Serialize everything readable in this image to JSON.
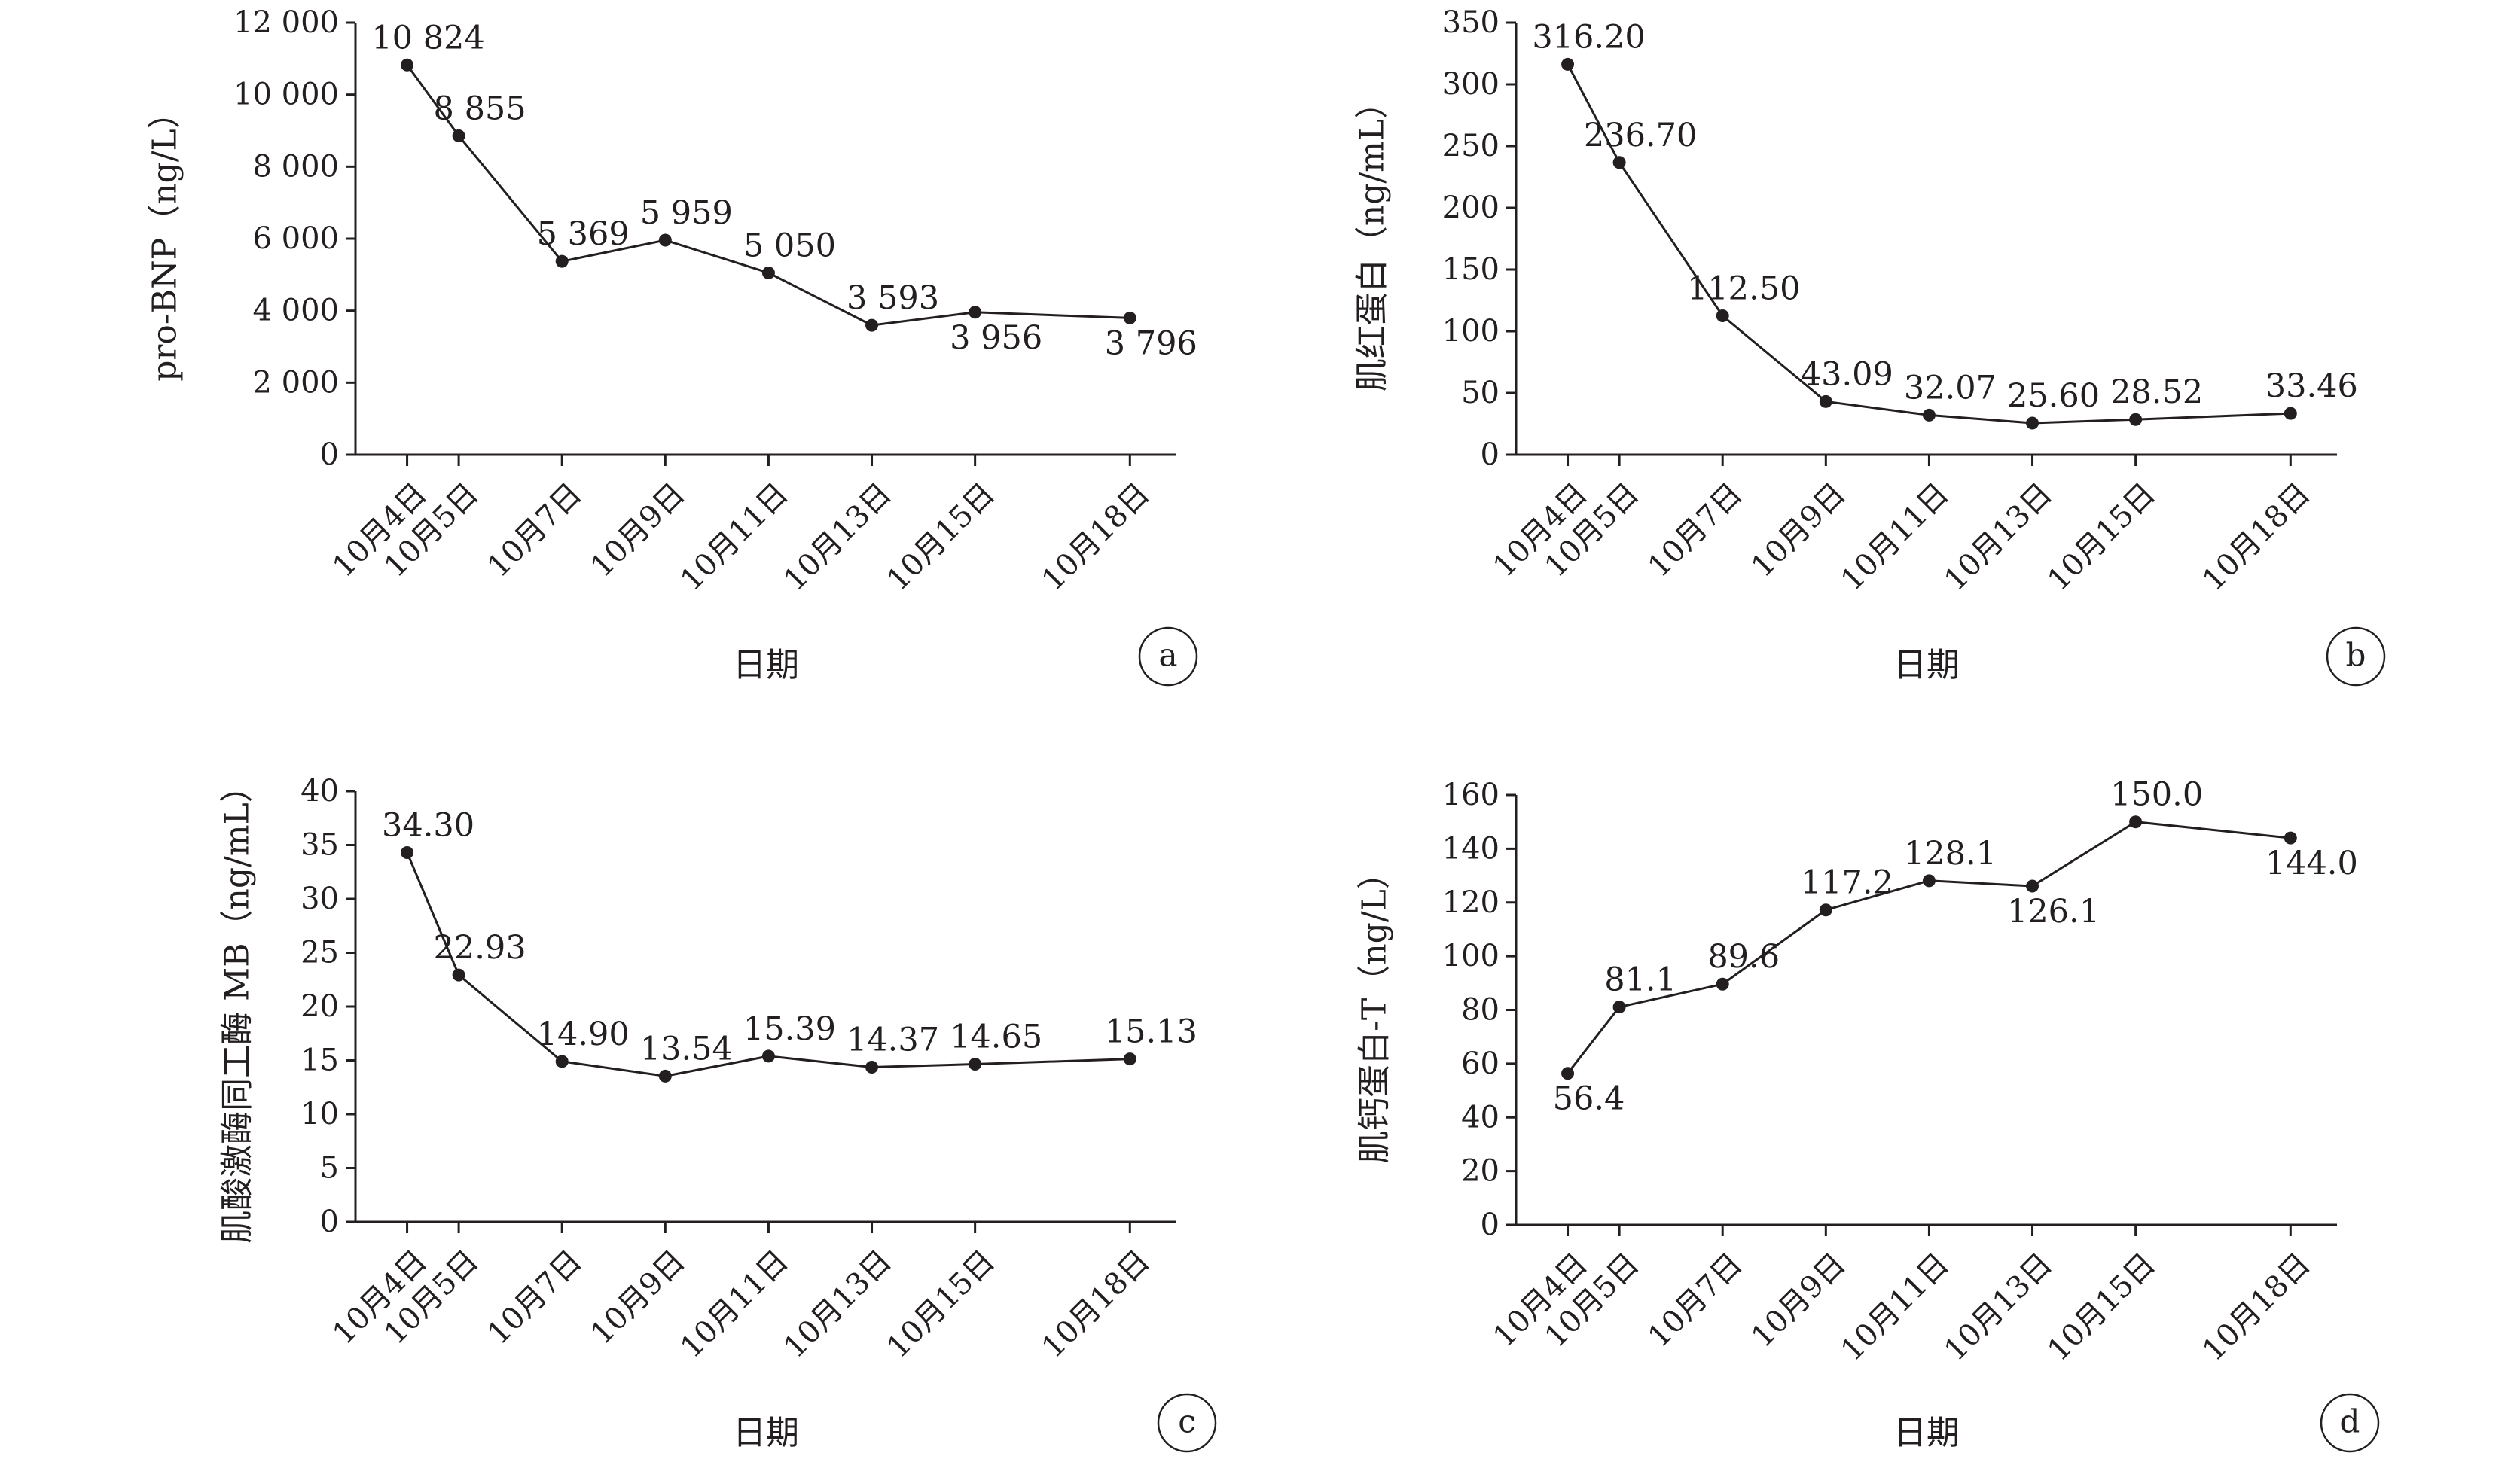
{
  "chart_data": [
    {
      "type": "line",
      "panel_label": "a",
      "ylabel": "pro-BNP（ng/L）",
      "xlabel": "日期",
      "categories": [
        "10月4日",
        "10月5日",
        "10月7日",
        "10月9日",
        "10月11日",
        "10月13日",
        "10月15日",
        "10月18日"
      ],
      "x_day": [
        4,
        5,
        7,
        9,
        11,
        13,
        15,
        18
      ],
      "values": [
        10824,
        8855,
        5369,
        5959,
        5050,
        3593,
        3956,
        3796
      ],
      "value_labels": [
        "10 824",
        "8 855",
        "5 369",
        "5 959",
        "5 050",
        "3 593",
        "3 956",
        "3 796"
      ],
      "label_position": [
        "above",
        "above",
        "above",
        "above",
        "above",
        "above",
        "below",
        "below"
      ],
      "ylim": [
        0,
        12000
      ],
      "yticks": [
        0,
        2000,
        4000,
        6000,
        8000,
        10000,
        12000
      ],
      "ytick_labels": [
        "0",
        "2 000",
        "4 000",
        "6 000",
        "8 000",
        "10 000",
        "12 000"
      ],
      "grid": false,
      "legend": "none"
    },
    {
      "type": "line",
      "panel_label": "b",
      "ylabel": "肌红蛋白（ng/mL）",
      "xlabel": "日期",
      "categories": [
        "10月4日",
        "10月5日",
        "10月7日",
        "10月9日",
        "10月11日",
        "10月13日",
        "10月15日",
        "10月18日"
      ],
      "x_day": [
        4,
        5,
        7,
        9,
        11,
        13,
        15,
        18
      ],
      "values": [
        316.2,
        236.7,
        112.5,
        43.09,
        32.07,
        25.6,
        28.52,
        33.46
      ],
      "value_labels": [
        "316.20",
        "236.70",
        "112.50",
        "43.09",
        "32.07",
        "25.60",
        "28.52",
        "33.46"
      ],
      "label_position": [
        "above",
        "above",
        "above",
        "above",
        "above",
        "above",
        "above",
        "above"
      ],
      "ylim": [
        0,
        350
      ],
      "yticks": [
        0,
        50,
        100,
        150,
        200,
        250,
        300,
        350
      ],
      "ytick_labels": [
        "0",
        "50",
        "100",
        "150",
        "200",
        "250",
        "300",
        "350"
      ],
      "grid": false,
      "legend": "none"
    },
    {
      "type": "line",
      "panel_label": "c",
      "ylabel": "肌酸激酶同工酶 MB（ng/mL）",
      "xlabel": "日期",
      "categories": [
        "10月4日",
        "10月5日",
        "10月7日",
        "10月9日",
        "10月11日",
        "10月13日",
        "10月15日",
        "10月18日"
      ],
      "x_day": [
        4,
        5,
        7,
        9,
        11,
        13,
        15,
        18
      ],
      "values": [
        34.3,
        22.93,
        14.9,
        13.54,
        15.39,
        14.37,
        14.65,
        15.13
      ],
      "value_labels": [
        "34.30",
        "22.93",
        "14.90",
        "13.54",
        "15.39",
        "14.37",
        "14.65",
        "15.13"
      ],
      "label_position": [
        "above",
        "above",
        "above",
        "above",
        "above",
        "above",
        "above",
        "above"
      ],
      "ylim": [
        0,
        40
      ],
      "yticks": [
        0,
        5,
        10,
        15,
        20,
        25,
        30,
        35,
        40
      ],
      "ytick_labels": [
        "0",
        "5",
        "10",
        "15",
        "20",
        "25",
        "30",
        "35",
        "40"
      ],
      "grid": false,
      "legend": "none"
    },
    {
      "type": "line",
      "panel_label": "d",
      "ylabel": "肌钙蛋白-T（ng/L）",
      "xlabel": "日期",
      "categories": [
        "10月4日",
        "10月5日",
        "10月7日",
        "10月9日",
        "10月11日",
        "10月13日",
        "10月15日",
        "10月18日"
      ],
      "x_day": [
        4,
        5,
        7,
        9,
        11,
        13,
        15,
        18
      ],
      "values": [
        56.4,
        81.1,
        89.6,
        117.2,
        128.1,
        126.1,
        150.0,
        144.0
      ],
      "value_labels": [
        "56.4",
        "81.1",
        "89.6",
        "117.2",
        "128.1",
        "126.1",
        "150.0",
        "144.0"
      ],
      "label_position": [
        "below",
        "above",
        "above",
        "above",
        "above",
        "below",
        "above",
        "below"
      ],
      "ylim": [
        0,
        160
      ],
      "yticks": [
        0,
        20,
        40,
        60,
        80,
        100,
        120,
        140,
        160
      ],
      "ytick_labels": [
        "0",
        "20",
        "40",
        "60",
        "80",
        "100",
        "120",
        "140",
        "160"
      ],
      "grid": false,
      "legend": "none"
    }
  ]
}
